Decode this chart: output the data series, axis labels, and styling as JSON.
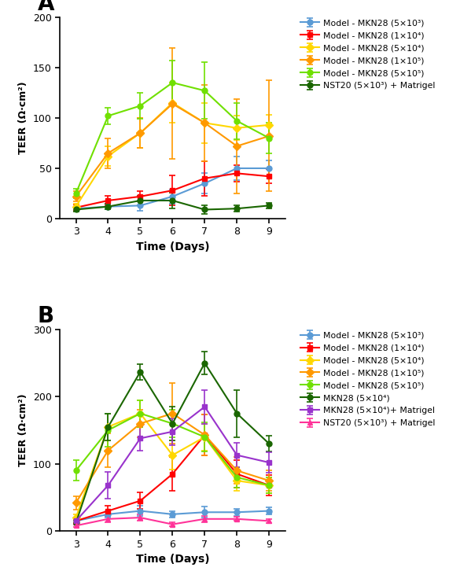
{
  "days": [
    3,
    4,
    5,
    6,
    7,
    8,
    9
  ],
  "panel_A": {
    "title": "A",
    "ylabel": "TEER (Ω·cm²)",
    "xlabel": "Time (Days)",
    "ylim": [
      0,
      200
    ],
    "yticks": [
      0,
      50,
      100,
      150,
      200
    ],
    "series": [
      {
        "label": "Model - MKN28 (5×10³)",
        "color": "#5b9bd5",
        "marker": "o",
        "mean": [
          10,
          12,
          13,
          22,
          35,
          50,
          50
        ],
        "err": [
          2,
          3,
          5,
          7,
          10,
          12,
          8
        ]
      },
      {
        "label": "Model - MKN28 (1×10⁴)",
        "color": "#ff0000",
        "marker": "s",
        "mean": [
          11,
          18,
          22,
          28,
          40,
          45,
          42
        ],
        "err": [
          3,
          5,
          5,
          15,
          17,
          8,
          7
        ]
      },
      {
        "label": "Model - MKN28 (5×10⁴)",
        "color": "#ffd700",
        "marker": "D",
        "mean": [
          12,
          62,
          85,
          115,
          95,
          90,
          93
        ],
        "err": [
          3,
          10,
          15,
          20,
          20,
          12,
          10
        ]
      },
      {
        "label": "Model - MKN28 (1×10⁵)",
        "color": "#ff9900",
        "marker": "D",
        "mean": [
          22,
          65,
          85,
          114,
          95,
          72,
          82
        ],
        "err": [
          5,
          15,
          15,
          55,
          38,
          47,
          55
        ]
      },
      {
        "label": "Model - MKN28 (5×10⁵)",
        "color": "#70e000",
        "marker": "o",
        "mean": [
          25,
          102,
          112,
          135,
          127,
          97,
          80
        ],
        "err": [
          5,
          8,
          13,
          22,
          28,
          18,
          15
        ]
      },
      {
        "label": "NST20 (5×10³) + Matrigel",
        "color": "#1a6600",
        "marker": "o",
        "mean": [
          9,
          12,
          18,
          18,
          9,
          10,
          13
        ],
        "err": [
          2,
          3,
          5,
          8,
          4,
          3,
          3
        ]
      }
    ]
  },
  "panel_B": {
    "title": "B",
    "ylabel": "TEER (Ω·cm²)",
    "xlabel": "Time (Days)",
    "ylim": [
      0,
      300
    ],
    "yticks": [
      0,
      100,
      200,
      300
    ],
    "series": [
      {
        "label": "Model - MKN28 (5×10³)",
        "color": "#5b9bd5",
        "marker": "o",
        "mean": [
          15,
          25,
          30,
          25,
          28,
          28,
          30
        ],
        "err": [
          4,
          5,
          8,
          5,
          8,
          5,
          5
        ]
      },
      {
        "label": "Model - MKN28 (1×10⁴)",
        "color": "#ff0000",
        "marker": "s",
        "mean": [
          15,
          30,
          45,
          85,
          143,
          85,
          68
        ],
        "err": [
          3,
          8,
          12,
          25,
          30,
          20,
          15
        ]
      },
      {
        "label": "Model - MKN28 (5×10⁴)",
        "color": "#ffd700",
        "marker": "D",
        "mean": [
          20,
          155,
          175,
          113,
          140,
          75,
          68
        ],
        "err": [
          5,
          20,
          20,
          22,
          20,
          15,
          12
        ]
      },
      {
        "label": "Model - MKN28 (1×10⁵)",
        "color": "#ff9900",
        "marker": "D",
        "mean": [
          42,
          120,
          160,
          175,
          143,
          90,
          75
        ],
        "err": [
          10,
          25,
          20,
          45,
          30,
          20,
          15
        ]
      },
      {
        "label": "Model - MKN28 (5×10⁵)",
        "color": "#70e000",
        "marker": "o",
        "mean": [
          90,
          150,
          175,
          160,
          140,
          80,
          68
        ],
        "err": [
          15,
          25,
          20,
          20,
          22,
          15,
          12
        ]
      },
      {
        "label": "MKN28 (5×10⁴)",
        "color": "#1a6600",
        "marker": "o",
        "mean": [
          12,
          155,
          237,
          160,
          250,
          175,
          130
        ],
        "err": [
          3,
          20,
          12,
          25,
          17,
          35,
          12
        ]
      },
      {
        "label": "MKN28 (5×10⁴)+ Matrigel",
        "color": "#9933cc",
        "marker": "s",
        "mean": [
          15,
          68,
          138,
          148,
          185,
          113,
          102
        ],
        "err": [
          5,
          20,
          18,
          20,
          25,
          18,
          15
        ]
      },
      {
        "label": "NST20 (5×10³) + Matrigel",
        "color": "#ff3399",
        "marker": "^",
        "mean": [
          8,
          18,
          20,
          10,
          18,
          18,
          15
        ],
        "err": [
          2,
          5,
          5,
          3,
          5,
          3,
          3
        ]
      }
    ]
  }
}
